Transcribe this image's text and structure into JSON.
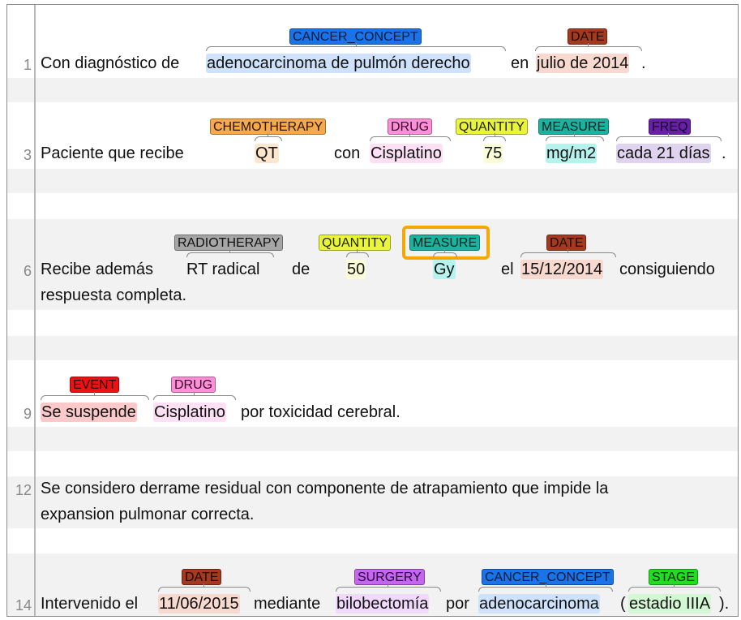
{
  "line_numbers": [
    "1",
    "3",
    "6",
    "9",
    "12",
    "14"
  ],
  "sentences": {
    "s1": {
      "t1": "Con diagnóstico de",
      "t2": "adenocarcinoma de pulmón derecho",
      "t3": "en",
      "t4": "julio de 2014",
      "t5": "."
    },
    "s3": {
      "t1": "Paciente que recibe",
      "t2": "QT",
      "t3": "con",
      "t4": "Cisplatino",
      "t5": "75",
      "t6": "mg/m2",
      "t7": "cada 21 días",
      "t8": "."
    },
    "s6": {
      "t1": "Recibe además",
      "t2": "RT radical",
      "t3": "de",
      "t4": "50",
      "t5": "Gy",
      "t6": "el",
      "t7": "15/12/2014",
      "t8": "consiguiendo",
      "t9": "respuesta completa."
    },
    "s9": {
      "t1": "Se suspende",
      "t2": "Cisplatino",
      "t3": "por toxicidad cerebral."
    },
    "s12": {
      "t1": "Se considero derrame residual con componente de atrapamiento que impide la",
      "t2": "expansion pulmonar correcta."
    },
    "s14": {
      "t1": "Intervenido el",
      "t2": "11/06/2015",
      "t3": "mediante",
      "t4": "bilobectomía",
      "t5": "por",
      "t6": "adenocarcinoma",
      "t7": "(",
      "t8": "estadio IIIA",
      "t9": ")."
    }
  },
  "labels": {
    "s1": [
      "CANCER_CONCEPT",
      "DATE"
    ],
    "s3": [
      "CHEMOTHERAPY",
      "DRUG",
      "QUANTITY",
      "MEASURE",
      "FREQ"
    ],
    "s6": [
      "RADIOTHERAPY",
      "QUANTITY",
      "MEASURE",
      "DATE"
    ],
    "s9": [
      "EVENT",
      "DRUG"
    ],
    "s14": [
      "DATE",
      "SURGERY",
      "CANCER_CONCEPT",
      "STAGE"
    ]
  },
  "colors": {
    "CANCER_CONCEPT": "#1a73e8",
    "DATE": "#a33a1f",
    "CHEMOTHERAPY": "#f8a94a",
    "DRUG": "#ff8fd8",
    "QUANTITY": "#e8f53a",
    "MEASURE": "#1ab3a0",
    "FREQ": "#6a1fa8",
    "RADIOTHERAPY": "#a6a6a6",
    "EVENT": "#ee1111",
    "SURGERY": "#c565f0",
    "STAGE": "#22dd22",
    "selection": "#f6a800"
  }
}
